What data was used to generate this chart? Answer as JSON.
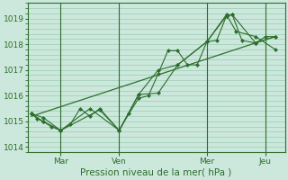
{
  "bg_color": "#cce8dc",
  "grid_color": "#99ccb3",
  "line_color": "#2d6e2d",
  "xlabel": "Pression niveau de la mer( hPa )",
  "ylim": [
    1013.8,
    1019.6
  ],
  "yticks": [
    1014,
    1015,
    1016,
    1017,
    1018,
    1019
  ],
  "xlim": [
    -0.2,
    13.0
  ],
  "day_labels": [
    "Mar",
    "Ven",
    "Mer",
    "Jeu"
  ],
  "day_positions": [
    1.5,
    4.5,
    9.0,
    12.0
  ],
  "vline_positions": [
    1.5,
    4.5,
    9.0,
    12.0
  ],
  "series1": [
    [
      0,
      1015.3
    ],
    [
      0.3,
      1015.1
    ],
    [
      0.6,
      1015.0
    ],
    [
      1.0,
      1014.8
    ],
    [
      1.5,
      1014.65
    ],
    [
      2.0,
      1014.9
    ],
    [
      2.5,
      1015.5
    ],
    [
      3.0,
      1015.2
    ],
    [
      3.5,
      1015.5
    ],
    [
      4.5,
      1014.65
    ],
    [
      5.0,
      1015.3
    ],
    [
      5.5,
      1015.9
    ],
    [
      6.0,
      1016.0
    ],
    [
      6.5,
      1016.85
    ],
    [
      7.0,
      1017.75
    ],
    [
      7.5,
      1017.75
    ],
    [
      8.0,
      1017.2
    ],
    [
      8.5,
      1017.2
    ],
    [
      9.0,
      1018.1
    ],
    [
      9.5,
      1018.15
    ],
    [
      10.0,
      1019.1
    ],
    [
      10.3,
      1019.15
    ],
    [
      10.8,
      1018.15
    ],
    [
      11.5,
      1018.05
    ],
    [
      12.0,
      1018.3
    ],
    [
      12.5,
      1018.3
    ]
  ],
  "series2": [
    [
      0,
      1015.3
    ],
    [
      0.6,
      1015.0
    ],
    [
      1.5,
      1014.65
    ],
    [
      3.0,
      1015.5
    ],
    [
      4.5,
      1014.65
    ],
    [
      5.5,
      1016.05
    ],
    [
      6.5,
      1017.0
    ],
    [
      7.5,
      1017.2
    ],
    [
      9.0,
      1018.1
    ],
    [
      10.0,
      1019.1
    ],
    [
      10.3,
      1019.15
    ],
    [
      11.5,
      1018.05
    ],
    [
      12.5,
      1018.3
    ]
  ],
  "series3": [
    [
      0,
      1015.3
    ],
    [
      0.6,
      1015.15
    ],
    [
      1.5,
      1014.65
    ],
    [
      3.5,
      1015.45
    ],
    [
      4.5,
      1014.65
    ],
    [
      5.5,
      1016.05
    ],
    [
      6.5,
      1016.1
    ],
    [
      7.5,
      1017.2
    ],
    [
      9.0,
      1018.1
    ],
    [
      10.0,
      1019.15
    ],
    [
      10.5,
      1018.5
    ],
    [
      11.5,
      1018.3
    ],
    [
      12.5,
      1017.8
    ]
  ],
  "trend_line": [
    [
      0,
      1015.2
    ],
    [
      12.5,
      1018.3
    ]
  ]
}
